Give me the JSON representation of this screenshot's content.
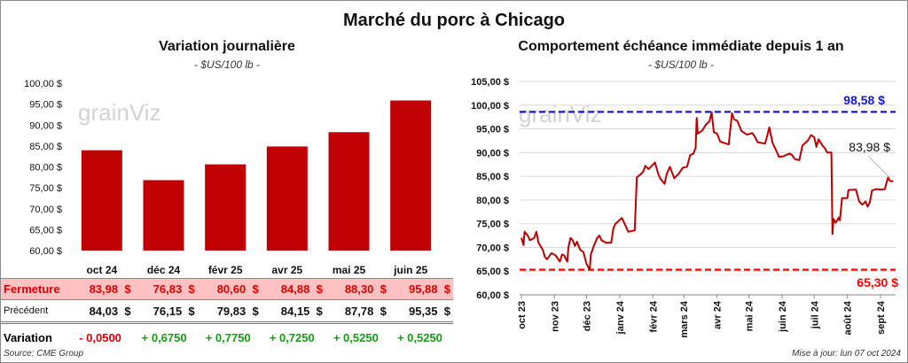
{
  "title": "Marché du porc à Chicago",
  "colors": {
    "bar": "#c00000",
    "line": "#c00000",
    "high": "#1a1acc",
    "low": "#ff0000",
    "close_row_bg": "#ffc1c1",
    "positive": "#169c16",
    "negative": "#e00000"
  },
  "watermark": "grainViz",
  "chart_data": [
    {
      "type": "bar",
      "title": "Variation journalière",
      "subtitle": "- $US/100 lb -",
      "categories": [
        "oct 24",
        "déc 24",
        "févr 25",
        "avr 25",
        "mai 25",
        "juin 25"
      ],
      "values": [
        83.98,
        76.83,
        80.6,
        84.88,
        88.3,
        95.88
      ],
      "ylim": [
        60,
        100
      ],
      "yticks": [
        "60,00 $",
        "65,00 $",
        "70,00 $",
        "75,00 $",
        "80,00 $",
        "85,00 $",
        "90,00 $",
        "95,00 $",
        "100,00 $"
      ],
      "grid": false
    },
    {
      "type": "line",
      "title": "Comportement échéance immédiate depuis 1 an",
      "subtitle": "- $US/100 lb -",
      "ylim": [
        60,
        105
      ],
      "yticks": [
        "60,00 $",
        "65,00 $",
        "70,00 $",
        "75,00 $",
        "80,00 $",
        "85,00 $",
        "90,00 $",
        "95,00 $",
        "100,00 $",
        "105,00 $"
      ],
      "xticks": [
        "oct 23",
        "nov 23",
        "déc 23",
        "janv 24",
        "févr 24",
        "mars 24",
        "avr 24",
        "mai 24",
        "juin 24",
        "juil 24",
        "août 24",
        "sept 24"
      ],
      "grid": true,
      "high": {
        "value": 98.58,
        "label": "98,58 $"
      },
      "low": {
        "value": 65.3,
        "label": "65,30 $"
      },
      "last": {
        "value": 83.98,
        "label": "83,98 $"
      },
      "points": [
        [
          "2023-10-01",
          72
        ],
        [
          "2023-10-03",
          70.5
        ],
        [
          "2023-10-04",
          73.3
        ],
        [
          "2023-10-07",
          72.5
        ],
        [
          "2023-10-09",
          71.5
        ],
        [
          "2023-10-13",
          72
        ],
        [
          "2023-10-15",
          73.3
        ],
        [
          "2023-10-17",
          71
        ],
        [
          "2023-10-21",
          69.5
        ],
        [
          "2023-10-23",
          68
        ],
        [
          "2023-10-25",
          67.5
        ],
        [
          "2023-10-29",
          68.8
        ],
        [
          "2023-11-02",
          68.3
        ],
        [
          "2023-11-06",
          67
        ],
        [
          "2023-11-08",
          68.5
        ],
        [
          "2023-11-10",
          68.3
        ],
        [
          "2023-11-13",
          67
        ],
        [
          "2023-11-14",
          70
        ],
        [
          "2023-11-16",
          72
        ],
        [
          "2023-11-18",
          71.5
        ],
        [
          "2023-11-20",
          70.3
        ],
        [
          "2023-11-22",
          71.2
        ],
        [
          "2023-11-25",
          69.5
        ],
        [
          "2023-11-28",
          69
        ],
        [
          "2023-12-01",
          66.5
        ],
        [
          "2023-12-04",
          65.3
        ],
        [
          "2023-12-05",
          68.5
        ],
        [
          "2023-12-08",
          70.5
        ],
        [
          "2023-12-11",
          72
        ],
        [
          "2023-12-13",
          72.5
        ],
        [
          "2023-12-15",
          71.5
        ],
        [
          "2023-12-19",
          71
        ],
        [
          "2023-12-24",
          71
        ],
        [
          "2023-12-26",
          74
        ],
        [
          "2023-12-28",
          75
        ],
        [
          "2024-01-03",
          76.2
        ],
        [
          "2024-01-06",
          74.8
        ],
        [
          "2024-01-09",
          73.3
        ],
        [
          "2024-01-15",
          73.6
        ],
        [
          "2024-01-17",
          84.8
        ],
        [
          "2024-01-20",
          85.3
        ],
        [
          "2024-01-23",
          86
        ],
        [
          "2024-01-25",
          87.2
        ],
        [
          "2024-01-28",
          86.5
        ],
        [
          "2024-02-03",
          87.9
        ],
        [
          "2024-02-06",
          85.5
        ],
        [
          "2024-02-08",
          84.5
        ],
        [
          "2024-02-12",
          83.4
        ],
        [
          "2024-02-14",
          85.5
        ],
        [
          "2024-02-17",
          87
        ],
        [
          "2024-02-21",
          84.6
        ],
        [
          "2024-02-25",
          85.5
        ],
        [
          "2024-02-29",
          86.8
        ],
        [
          "2024-03-04",
          87
        ],
        [
          "2024-03-07",
          89.5
        ],
        [
          "2024-03-10",
          89.8
        ],
        [
          "2024-03-12",
          91
        ],
        [
          "2024-03-13",
          97.3
        ],
        [
          "2024-03-14",
          94
        ],
        [
          "2024-03-18",
          94.6
        ],
        [
          "2024-03-22",
          96
        ],
        [
          "2024-03-25",
          96.6
        ],
        [
          "2024-03-27",
          98.5
        ],
        [
          "2024-03-29",
          94.3
        ],
        [
          "2024-04-01",
          94
        ],
        [
          "2024-04-04",
          92.3
        ],
        [
          "2024-04-08",
          92
        ],
        [
          "2024-04-12",
          91.7
        ],
        [
          "2024-04-15",
          98.3
        ],
        [
          "2024-04-17",
          97
        ],
        [
          "2024-04-20",
          96.7
        ],
        [
          "2024-04-24",
          94.5
        ],
        [
          "2024-04-29",
          93.8
        ],
        [
          "2024-05-04",
          94.1
        ],
        [
          "2024-05-06",
          93.5
        ],
        [
          "2024-05-09",
          92.2
        ],
        [
          "2024-05-16",
          91.9
        ],
        [
          "2024-05-18",
          93.5
        ],
        [
          "2024-05-20",
          95.3
        ],
        [
          "2024-05-23",
          92
        ],
        [
          "2024-05-26",
          90.6
        ],
        [
          "2024-05-29",
          89.1
        ],
        [
          "2024-06-02",
          89.2
        ],
        [
          "2024-06-08",
          89.8
        ],
        [
          "2024-06-10",
          89.5
        ],
        [
          "2024-06-13",
          88.6
        ],
        [
          "2024-06-17",
          88.4
        ],
        [
          "2024-06-20",
          91.5
        ],
        [
          "2024-06-25",
          92.5
        ],
        [
          "2024-06-28",
          93.7
        ],
        [
          "2024-07-01",
          93.2
        ],
        [
          "2024-07-03",
          91.2
        ],
        [
          "2024-07-05",
          92.8
        ],
        [
          "2024-07-09",
          91.4
        ],
        [
          "2024-07-11",
          90.9
        ],
        [
          "2024-07-13",
          90
        ],
        [
          "2024-07-17",
          90
        ],
        [
          "2024-07-18",
          72.8
        ],
        [
          "2024-07-19",
          76
        ],
        [
          "2024-07-21",
          75.2
        ],
        [
          "2024-07-24",
          76.3
        ],
        [
          "2024-07-25",
          75.7
        ],
        [
          "2024-07-27",
          80.4
        ],
        [
          "2024-08-01",
          80.4
        ],
        [
          "2024-08-02",
          82.1
        ],
        [
          "2024-08-09",
          82.2
        ],
        [
          "2024-08-12",
          79.7
        ],
        [
          "2024-08-15",
          79
        ],
        [
          "2024-08-18",
          79.7
        ],
        [
          "2024-08-20",
          78.6
        ],
        [
          "2024-08-22",
          79.5
        ],
        [
          "2024-08-24",
          82
        ],
        [
          "2024-08-28",
          82.3
        ],
        [
          "2024-09-01",
          82.2
        ],
        [
          "2024-09-05",
          82.3
        ],
        [
          "2024-09-08",
          84.7
        ],
        [
          "2024-09-10",
          84
        ],
        [
          "2024-09-13",
          83.98
        ]
      ]
    }
  ],
  "table": {
    "rows": [
      {
        "label": "Fermeture",
        "values": [
          "83,98",
          "76,83",
          "80,60",
          "84,88",
          "88,30",
          "95,88"
        ],
        "unit": "$"
      },
      {
        "label": "Précédent",
        "values": [
          "84,03",
          "76,15",
          "79,83",
          "84,15",
          "87,78",
          "95,35"
        ],
        "unit": "$"
      },
      {
        "label": "Variation",
        "values": [
          "- 0,0500",
          "+ 0,6750",
          "+ 0,7750",
          "+ 0,7250",
          "+ 0,5250",
          "+ 0,5250"
        ]
      }
    ]
  },
  "footer": {
    "source": "Source: CME Group",
    "updated": "Mise à jour: lun 07 oct 2024"
  }
}
